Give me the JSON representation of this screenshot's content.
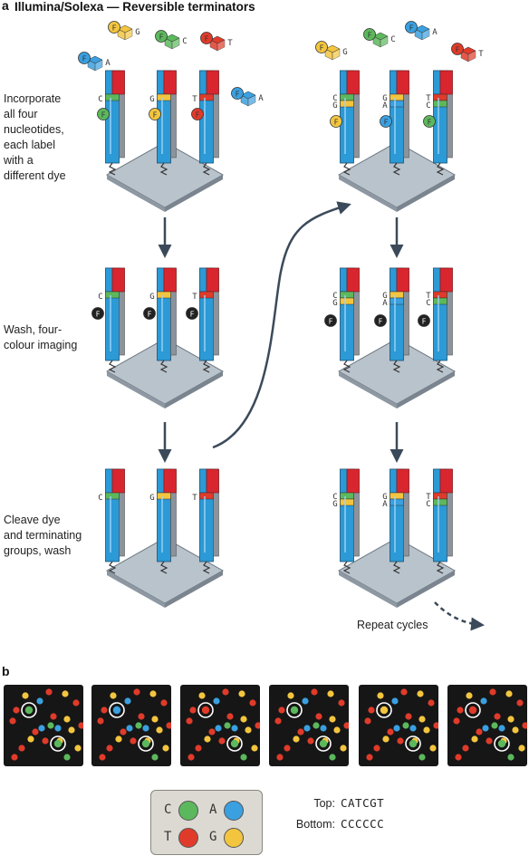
{
  "panel_a": {
    "label": "a",
    "title": "Illumina/Solexa — Reversible terminators",
    "steps": [
      "Incorporate\nall four\nnucleotides,\neach label\nwith a\ndifferent dye",
      "Wash, four-\ncolour imaging",
      "Cleave dye\nand terminating\ngroups, wash"
    ],
    "repeat": "Repeat cycles",
    "dye_glyph": "F",
    "cycle1_labels": [
      "C",
      "G",
      "T"
    ],
    "cycle2_labels_upper": [
      "C",
      "G",
      "T"
    ],
    "cycle2_labels_lower": [
      "G",
      "A",
      "C"
    ],
    "free_nucleotides": [
      "G",
      "C",
      "T",
      "A",
      "A"
    ]
  },
  "panel_b": {
    "label": "b",
    "image_count": 6,
    "legend": [
      {
        "base": "C",
        "color": "#5cb85c"
      },
      {
        "base": "A",
        "color": "#3aa0e0"
      },
      {
        "base": "T",
        "color": "#e03b2a"
      },
      {
        "base": "G",
        "color": "#f3c53f"
      }
    ],
    "top_label": "Top:",
    "top_seq": "CATCGT",
    "bottom_label": "Bottom:",
    "bottom_seq": "CCCCCC"
  },
  "colors": {
    "A": "#3aa0e0",
    "C": "#5cb85c",
    "G": "#f3c53f",
    "T": "#e03b2a",
    "strand": "#2b9ad6",
    "slide": "#b9c3cc",
    "arrow": "#3b4a5a",
    "image_bg": "#161616"
  }
}
